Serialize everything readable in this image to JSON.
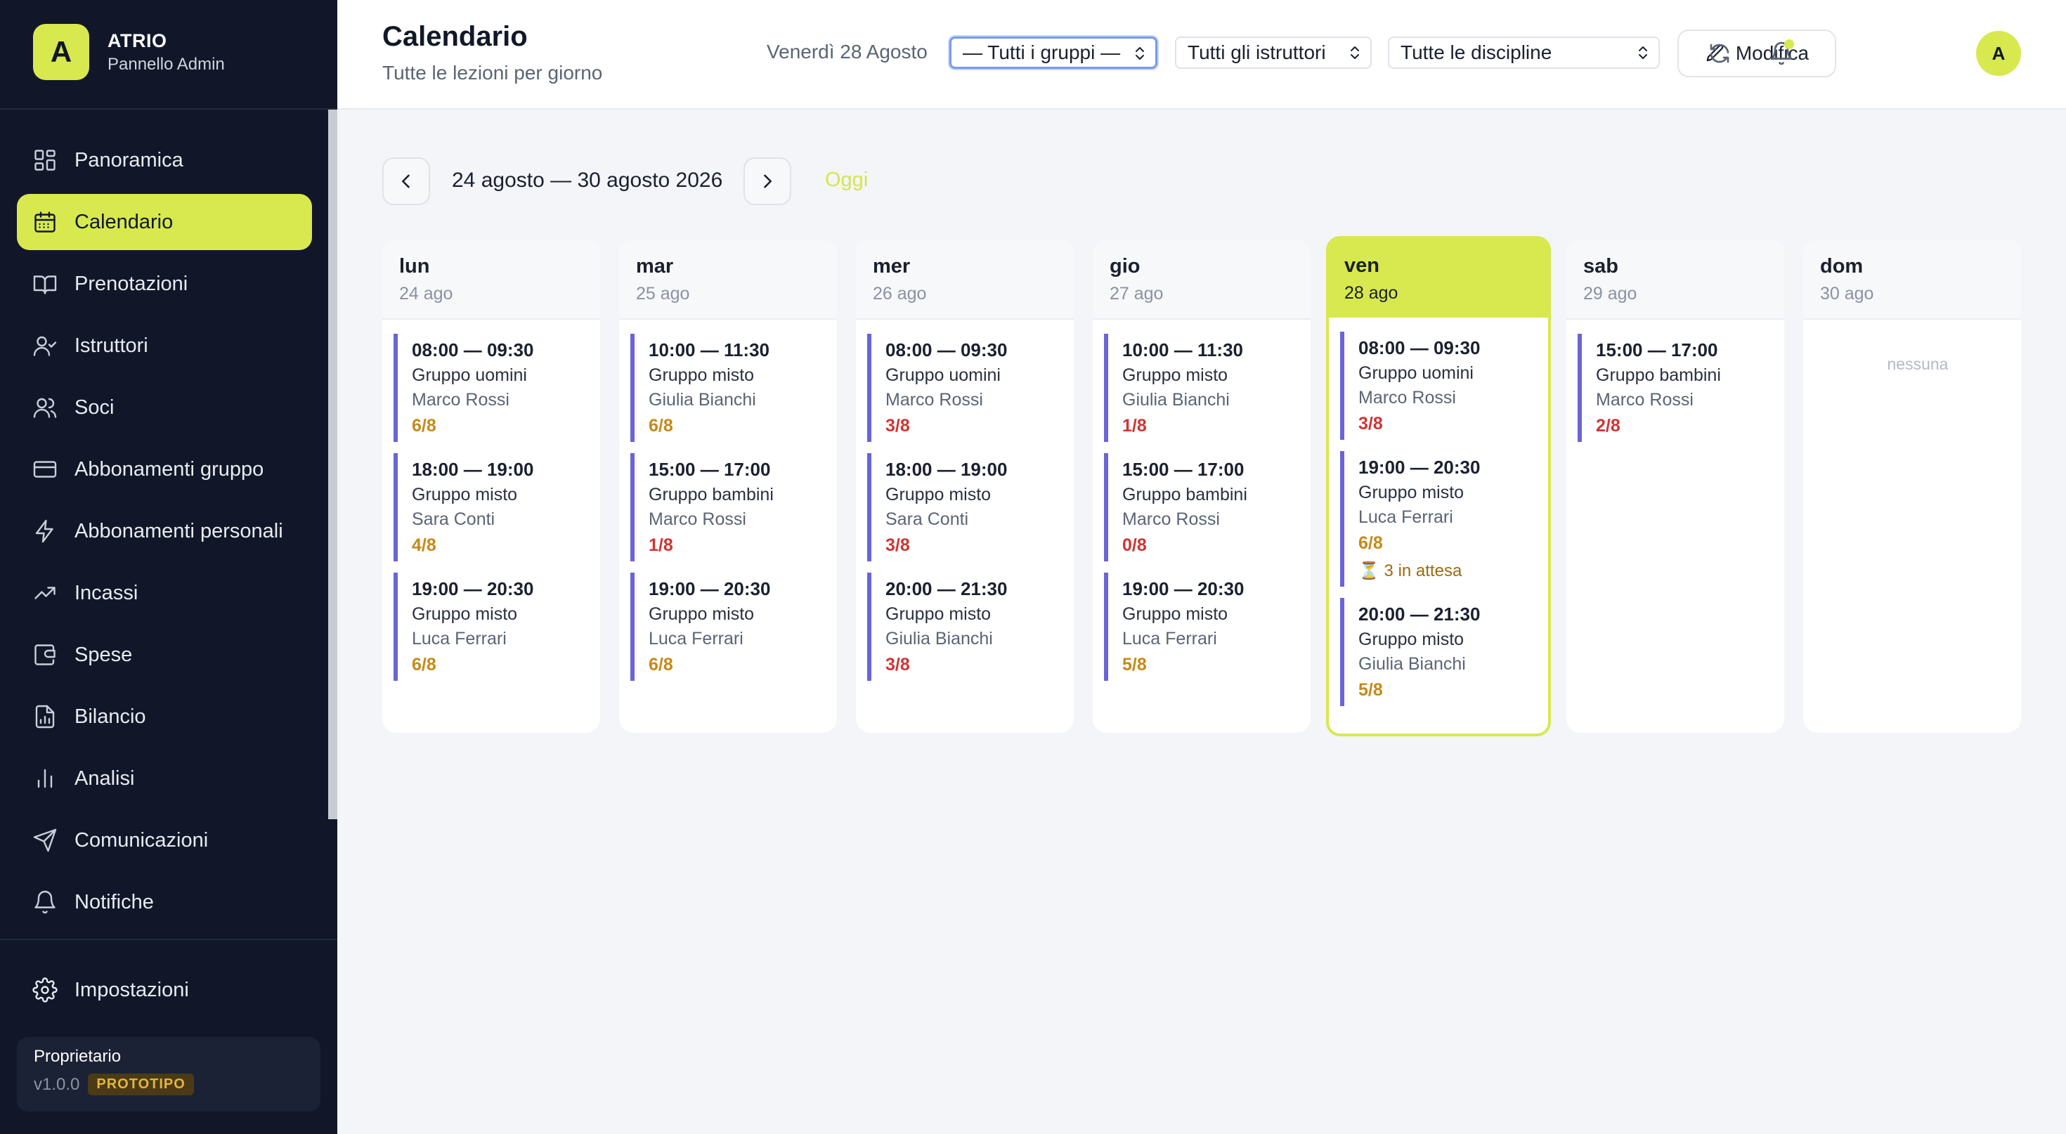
{
  "brand": {
    "logo_letter": "A",
    "name": "ATRIO",
    "subtitle": "Pannello Admin"
  },
  "nav": [
    {
      "label": "Panoramica",
      "icon": "dashboard-icon",
      "active": false
    },
    {
      "label": "Calendario",
      "icon": "calendar-icon",
      "active": true
    },
    {
      "label": "Prenotazioni",
      "icon": "book-icon",
      "active": false
    },
    {
      "label": "Istruttori",
      "icon": "user-check-icon",
      "active": false
    },
    {
      "label": "Soci",
      "icon": "users-icon",
      "active": false
    },
    {
      "label": "Abbonamenti gruppo",
      "icon": "card-icon",
      "active": false
    },
    {
      "label": "Abbonamenti personali",
      "icon": "bolt-icon",
      "active": false
    },
    {
      "label": "Incassi",
      "icon": "trending-up-icon",
      "active": false
    },
    {
      "label": "Spese",
      "icon": "wallet-icon",
      "active": false
    },
    {
      "label": "Bilancio",
      "icon": "report-icon",
      "active": false
    },
    {
      "label": "Analisi",
      "icon": "bar-chart-icon",
      "active": false
    },
    {
      "label": "Comunicazioni",
      "icon": "send-icon",
      "active": false
    },
    {
      "label": "Notifiche",
      "icon": "bell-icon",
      "active": false
    }
  ],
  "settings": {
    "label": "Impostazioni",
    "icon": "gear-icon"
  },
  "owner": {
    "title": "Proprietario",
    "version": "v1.0.0",
    "badge": "PROTOTIPO"
  },
  "header": {
    "title": "Calendario",
    "subtitle": "Tutte le lezioni per giorno",
    "date_label": "Venerdì 28 Agosto",
    "filters": {
      "groups": "— Tutti i gruppi —",
      "instructors": "Tutti gli istruttori",
      "disciplines": "Tutte le discipline"
    },
    "edit_label": "Modifica",
    "avatar_letter": "A"
  },
  "week": {
    "range": "24 agosto — 30 agosto 2026",
    "today_label": "Oggi"
  },
  "days": [
    {
      "name": "lun",
      "date": "24 ago",
      "today": false,
      "lessons": [
        {
          "time": "08:00 — 09:30",
          "group": "Gruppo uomini",
          "instructor": "Marco Rossi",
          "count": "6/8",
          "level": "warn"
        },
        {
          "time": "18:00 — 19:00",
          "group": "Gruppo misto",
          "instructor": "Sara Conti",
          "count": "4/8",
          "level": "warn"
        },
        {
          "time": "19:00 — 20:30",
          "group": "Gruppo misto",
          "instructor": "Luca Ferrari",
          "count": "6/8",
          "level": "warn"
        }
      ]
    },
    {
      "name": "mar",
      "date": "25 ago",
      "today": false,
      "lessons": [
        {
          "time": "10:00 — 11:30",
          "group": "Gruppo misto",
          "instructor": "Giulia Bianchi",
          "count": "6/8",
          "level": "warn"
        },
        {
          "time": "15:00 — 17:00",
          "group": "Gruppo bambini",
          "instructor": "Marco Rossi",
          "count": "1/8",
          "level": "low"
        },
        {
          "time": "19:00 — 20:30",
          "group": "Gruppo misto",
          "instructor": "Luca Ferrari",
          "count": "6/8",
          "level": "warn"
        }
      ]
    },
    {
      "name": "mer",
      "date": "26 ago",
      "today": false,
      "lessons": [
        {
          "time": "08:00 — 09:30",
          "group": "Gruppo uomini",
          "instructor": "Marco Rossi",
          "count": "3/8",
          "level": "low"
        },
        {
          "time": "18:00 — 19:00",
          "group": "Gruppo misto",
          "instructor": "Sara Conti",
          "count": "3/8",
          "level": "low"
        },
        {
          "time": "20:00 — 21:30",
          "group": "Gruppo misto",
          "instructor": "Giulia Bianchi",
          "count": "3/8",
          "level": "low"
        }
      ]
    },
    {
      "name": "gio",
      "date": "27 ago",
      "today": false,
      "lessons": [
        {
          "time": "10:00 — 11:30",
          "group": "Gruppo misto",
          "instructor": "Giulia Bianchi",
          "count": "1/8",
          "level": "low"
        },
        {
          "time": "15:00 — 17:00",
          "group": "Gruppo bambini",
          "instructor": "Marco Rossi",
          "count": "0/8",
          "level": "low"
        },
        {
          "time": "19:00 — 20:30",
          "group": "Gruppo misto",
          "instructor": "Luca Ferrari",
          "count": "5/8",
          "level": "warn"
        }
      ]
    },
    {
      "name": "ven",
      "date": "28 ago",
      "today": true,
      "lessons": [
        {
          "time": "08:00 — 09:30",
          "group": "Gruppo uomini",
          "instructor": "Marco Rossi",
          "count": "3/8",
          "level": "low"
        },
        {
          "time": "19:00 — 20:30",
          "group": "Gruppo misto",
          "instructor": "Luca Ferrari",
          "count": "6/8",
          "level": "warn",
          "waiting": "⏳ 3 in attesa"
        },
        {
          "time": "20:00 — 21:30",
          "group": "Gruppo misto",
          "instructor": "Giulia Bianchi",
          "count": "5/8",
          "level": "warn"
        }
      ]
    },
    {
      "name": "sab",
      "date": "29 ago",
      "today": false,
      "lessons": [
        {
          "time": "15:00 — 17:00",
          "group": "Gruppo bambini",
          "instructor": "Marco Rossi",
          "count": "2/8",
          "level": "low"
        }
      ]
    },
    {
      "name": "dom",
      "date": "30 ago",
      "today": false,
      "lessons": [],
      "empty_label": "nessuna"
    }
  ],
  "colors": {
    "accent": "#d8e84f",
    "sidebar": "#111729",
    "lesson_bar": "#6a64d8",
    "warn": "#c58a19",
    "low": "#d03434"
  }
}
